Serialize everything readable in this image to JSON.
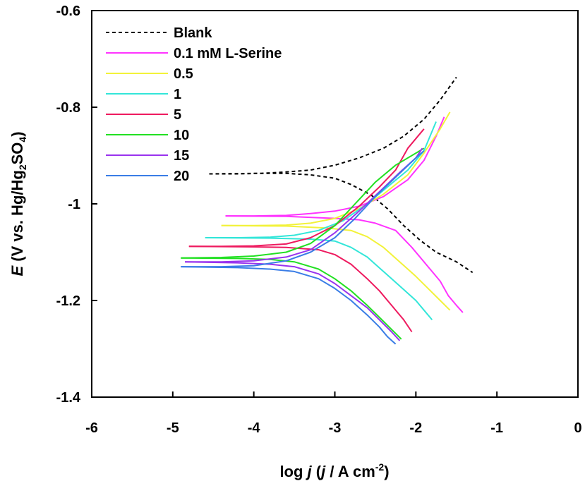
{
  "chart_data": {
    "type": "line",
    "xlabel": {
      "pre": "log ",
      "italic": "j",
      "post": " (",
      "italic2": "j",
      "post2": " / A cm",
      "sup": "-2",
      "close": ")"
    },
    "ylabel": {
      "italic": "E",
      "pre": " (V vs. Hg/Hg",
      "sub1": "2",
      "mid": "SO",
      "sub2": "4",
      "close": ")"
    },
    "xlim": [
      -6,
      0
    ],
    "ylim": [
      -1.4,
      -0.6
    ],
    "xticks": [
      -6,
      -5,
      -4,
      -3,
      -2,
      -1,
      0
    ],
    "xtick_labels": [
      "-6",
      "-5",
      "-4",
      "-3",
      "-2",
      "-1",
      "0"
    ],
    "yticks": [
      -0.6,
      -0.8,
      -1.0,
      -1.2,
      -1.4
    ],
    "ytick_labels": [
      "-0.6",
      "-0.8",
      "-1",
      "-1.2",
      "-1.4"
    ],
    "grid": false,
    "legend_position": "top-left",
    "series": [
      {
        "name": "Blank",
        "color": "#000000",
        "dash": "dashed",
        "anodic": [
          [
            -4.55,
            -0.938
          ],
          [
            -4.2,
            -0.938
          ],
          [
            -3.9,
            -0.937
          ],
          [
            -3.6,
            -0.934
          ],
          [
            -3.3,
            -0.93
          ],
          [
            -3.0,
            -0.92
          ],
          [
            -2.7,
            -0.905
          ],
          [
            -2.4,
            -0.885
          ],
          [
            -2.15,
            -0.86
          ],
          [
            -1.9,
            -0.825
          ],
          [
            -1.7,
            -0.785
          ],
          [
            -1.5,
            -0.738
          ]
        ],
        "cathodic": [
          [
            -4.55,
            -0.938
          ],
          [
            -4.0,
            -0.937
          ],
          [
            -3.6,
            -0.937
          ],
          [
            -3.3,
            -0.94
          ],
          [
            -3.0,
            -0.947
          ],
          [
            -2.8,
            -0.96
          ],
          [
            -2.55,
            -0.982
          ],
          [
            -2.35,
            -1.01
          ],
          [
            -2.15,
            -1.045
          ],
          [
            -1.95,
            -1.075
          ],
          [
            -1.75,
            -1.1
          ],
          [
            -1.5,
            -1.12
          ],
          [
            -1.3,
            -1.142
          ]
        ]
      },
      {
        "name": "0.1 mM L-Serine",
        "color": "#ff33ff",
        "dash": "solid",
        "anodic": [
          [
            -4.35,
            -1.025
          ],
          [
            -4.0,
            -1.025
          ],
          [
            -3.6,
            -1.024
          ],
          [
            -3.3,
            -1.02
          ],
          [
            -3.0,
            -1.015
          ],
          [
            -2.7,
            -1.005
          ],
          [
            -2.4,
            -0.985
          ],
          [
            -2.1,
            -0.95
          ],
          [
            -1.9,
            -0.91
          ],
          [
            -1.75,
            -0.86
          ],
          [
            -1.65,
            -0.82
          ]
        ],
        "cathodic": [
          [
            -4.35,
            -1.025
          ],
          [
            -3.6,
            -1.026
          ],
          [
            -3.0,
            -1.03
          ],
          [
            -2.7,
            -1.033
          ],
          [
            -2.5,
            -1.04
          ],
          [
            -2.25,
            -1.055
          ],
          [
            -2.05,
            -1.09
          ],
          [
            -1.85,
            -1.13
          ],
          [
            -1.7,
            -1.16
          ],
          [
            -1.6,
            -1.19
          ],
          [
            -1.5,
            -1.21
          ],
          [
            -1.42,
            -1.225
          ]
        ]
      },
      {
        "name": "0.5",
        "color": "#f2f23a",
        "dash": "solid",
        "anodic": [
          [
            -4.4,
            -1.045
          ],
          [
            -4.0,
            -1.045
          ],
          [
            -3.6,
            -1.044
          ],
          [
            -3.3,
            -1.04
          ],
          [
            -3.0,
            -1.03
          ],
          [
            -2.7,
            -1.01
          ],
          [
            -2.4,
            -0.98
          ],
          [
            -2.1,
            -0.94
          ],
          [
            -1.9,
            -0.895
          ],
          [
            -1.7,
            -0.845
          ],
          [
            -1.58,
            -0.81
          ]
        ],
        "cathodic": [
          [
            -4.4,
            -1.045
          ],
          [
            -3.6,
            -1.046
          ],
          [
            -3.1,
            -1.05
          ],
          [
            -2.8,
            -1.055
          ],
          [
            -2.6,
            -1.068
          ],
          [
            -2.4,
            -1.09
          ],
          [
            -2.2,
            -1.12
          ],
          [
            -2.0,
            -1.15
          ],
          [
            -1.85,
            -1.175
          ],
          [
            -1.7,
            -1.2
          ],
          [
            -1.58,
            -1.22
          ]
        ]
      },
      {
        "name": "1",
        "color": "#33e6d9",
        "dash": "solid",
        "anodic": [
          [
            -4.6,
            -1.07
          ],
          [
            -4.2,
            -1.07
          ],
          [
            -3.8,
            -1.069
          ],
          [
            -3.5,
            -1.065
          ],
          [
            -3.2,
            -1.055
          ],
          [
            -2.9,
            -1.035
          ],
          [
            -2.6,
            -1.0
          ],
          [
            -2.35,
            -0.965
          ],
          [
            -2.1,
            -0.93
          ],
          [
            -1.9,
            -0.89
          ],
          [
            -1.75,
            -0.83
          ]
        ],
        "cathodic": [
          [
            -4.6,
            -1.07
          ],
          [
            -3.8,
            -1.071
          ],
          [
            -3.3,
            -1.073
          ],
          [
            -3.0,
            -1.077
          ],
          [
            -2.8,
            -1.09
          ],
          [
            -2.6,
            -1.11
          ],
          [
            -2.4,
            -1.14
          ],
          [
            -2.2,
            -1.17
          ],
          [
            -2.0,
            -1.2
          ],
          [
            -1.9,
            -1.22
          ],
          [
            -1.8,
            -1.24
          ]
        ]
      },
      {
        "name": "5",
        "color": "#ee1a5f",
        "dash": "solid",
        "anodic": [
          [
            -4.8,
            -1.088
          ],
          [
            -4.4,
            -1.088
          ],
          [
            -4.0,
            -1.087
          ],
          [
            -3.6,
            -1.083
          ],
          [
            -3.3,
            -1.07
          ],
          [
            -3.0,
            -1.045
          ],
          [
            -2.7,
            -1.005
          ],
          [
            -2.45,
            -0.965
          ],
          [
            -2.25,
            -0.93
          ],
          [
            -2.1,
            -0.885
          ],
          [
            -1.9,
            -0.845
          ]
        ],
        "cathodic": [
          [
            -4.8,
            -1.088
          ],
          [
            -4.0,
            -1.089
          ],
          [
            -3.6,
            -1.09
          ],
          [
            -3.2,
            -1.095
          ],
          [
            -3.0,
            -1.105
          ],
          [
            -2.8,
            -1.125
          ],
          [
            -2.6,
            -1.155
          ],
          [
            -2.45,
            -1.18
          ],
          [
            -2.3,
            -1.21
          ],
          [
            -2.15,
            -1.24
          ],
          [
            -2.05,
            -1.265
          ]
        ]
      },
      {
        "name": "10",
        "color": "#22e022",
        "dash": "solid",
        "anodic": [
          [
            -4.9,
            -1.112
          ],
          [
            -4.4,
            -1.111
          ],
          [
            -4.0,
            -1.108
          ],
          [
            -3.6,
            -1.1
          ],
          [
            -3.3,
            -1.082
          ],
          [
            -3.0,
            -1.045
          ],
          [
            -2.75,
            -1.0
          ],
          [
            -2.5,
            -0.955
          ],
          [
            -2.25,
            -0.92
          ],
          [
            -2.0,
            -0.895
          ],
          [
            -1.9,
            -0.885
          ]
        ],
        "cathodic": [
          [
            -4.9,
            -1.112
          ],
          [
            -4.2,
            -1.113
          ],
          [
            -3.8,
            -1.115
          ],
          [
            -3.5,
            -1.12
          ],
          [
            -3.2,
            -1.135
          ],
          [
            -3.0,
            -1.155
          ],
          [
            -2.8,
            -1.18
          ],
          [
            -2.6,
            -1.21
          ],
          [
            -2.45,
            -1.235
          ],
          [
            -2.3,
            -1.26
          ],
          [
            -2.18,
            -1.28
          ]
        ]
      },
      {
        "name": "15",
        "color": "#9933ee",
        "dash": "solid",
        "anodic": [
          [
            -4.85,
            -1.12
          ],
          [
            -4.4,
            -1.12
          ],
          [
            -4.0,
            -1.118
          ],
          [
            -3.6,
            -1.11
          ],
          [
            -3.3,
            -1.095
          ],
          [
            -3.0,
            -1.06
          ],
          [
            -2.7,
            -1.015
          ],
          [
            -2.45,
            -0.975
          ],
          [
            -2.2,
            -0.935
          ],
          [
            -2.0,
            -0.905
          ],
          [
            -1.92,
            -0.885
          ]
        ],
        "cathodic": [
          [
            -4.85,
            -1.12
          ],
          [
            -4.2,
            -1.122
          ],
          [
            -3.8,
            -1.125
          ],
          [
            -3.5,
            -1.13
          ],
          [
            -3.2,
            -1.145
          ],
          [
            -3.0,
            -1.165
          ],
          [
            -2.8,
            -1.19
          ],
          [
            -2.6,
            -1.215
          ],
          [
            -2.45,
            -1.24
          ],
          [
            -2.3,
            -1.265
          ],
          [
            -2.2,
            -1.283
          ]
        ]
      },
      {
        "name": "20",
        "color": "#3a7de6",
        "dash": "solid",
        "anodic": [
          [
            -4.9,
            -1.13
          ],
          [
            -4.4,
            -1.13
          ],
          [
            -4.0,
            -1.128
          ],
          [
            -3.6,
            -1.118
          ],
          [
            -3.3,
            -1.1
          ],
          [
            -3.0,
            -1.07
          ],
          [
            -2.75,
            -1.03
          ],
          [
            -2.5,
            -0.985
          ],
          [
            -2.25,
            -0.945
          ],
          [
            -2.0,
            -0.905
          ],
          [
            -1.9,
            -0.89
          ]
        ],
        "cathodic": [
          [
            -4.9,
            -1.13
          ],
          [
            -4.2,
            -1.132
          ],
          [
            -3.8,
            -1.135
          ],
          [
            -3.5,
            -1.14
          ],
          [
            -3.2,
            -1.155
          ],
          [
            -3.0,
            -1.175
          ],
          [
            -2.8,
            -1.2
          ],
          [
            -2.6,
            -1.23
          ],
          [
            -2.45,
            -1.255
          ],
          [
            -2.35,
            -1.275
          ],
          [
            -2.25,
            -1.29
          ]
        ]
      }
    ]
  }
}
